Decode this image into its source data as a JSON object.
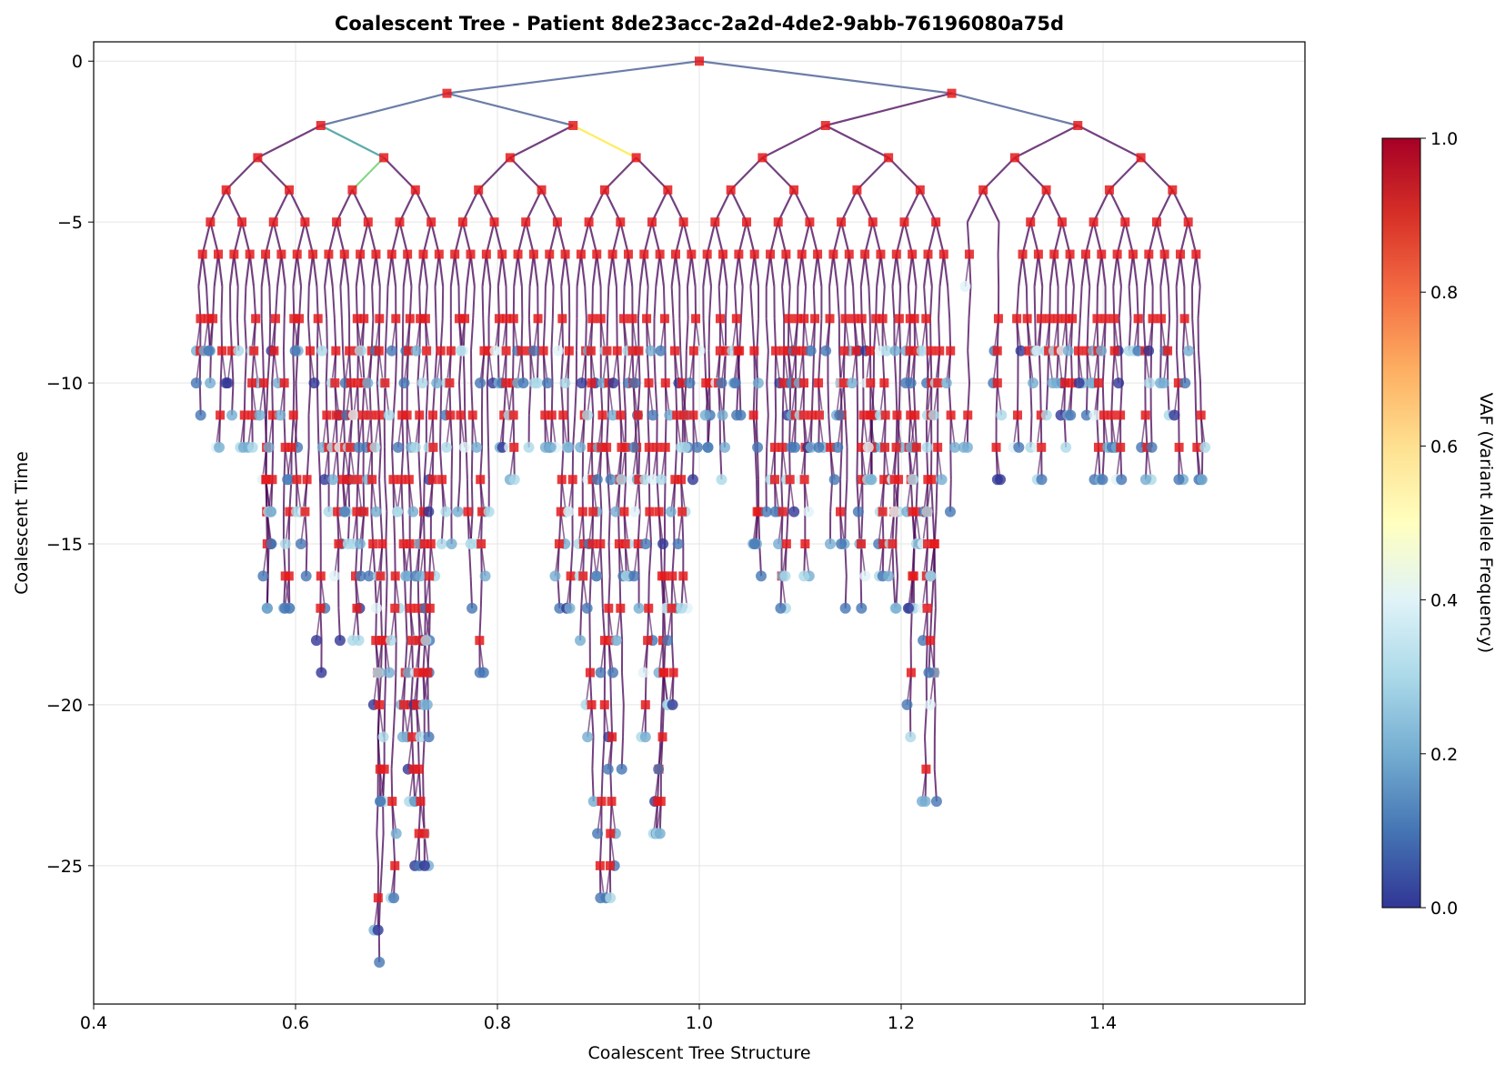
{
  "chart_data": {
    "type": "scatter",
    "subtype": "coalescent-tree",
    "title": "Coalescent Tree - Patient 8de23acc-2a2d-4de2-9abb-76196080a75d",
    "xlabel": "Coalescent Tree Structure",
    "ylabel": "Coalescent Time",
    "xlim": [
      0.4,
      1.6
    ],
    "ylim": [
      -29.3,
      0.6
    ],
    "xticks": [
      0.4,
      0.6,
      0.8,
      1.0,
      1.2,
      1.4
    ],
    "xtick_labels": [
      "0.4",
      "0.6",
      "0.8",
      "1.0",
      "1.2",
      "1.4"
    ],
    "yticks": [
      0,
      -5,
      -10,
      -15,
      -20,
      -25
    ],
    "ytick_labels": [
      "0",
      "−5",
      "−10",
      "−15",
      "−20",
      "−25"
    ],
    "grid": true,
    "colorbar": {
      "label": "VAF (Variant Allele Frequency)",
      "min": 0.0,
      "max": 1.0,
      "ticks": [
        0.0,
        0.2,
        0.4,
        0.6,
        0.8,
        1.0
      ],
      "tick_labels": [
        "0.0",
        "0.2",
        "0.4",
        "0.6",
        "0.8",
        "1.0"
      ],
      "colormap": "RdYlBu_r"
    },
    "marker_legend": {
      "internal_nodes": "square, red",
      "leaf_nodes": "circle, colored by VAF"
    },
    "edge_colormap": "viridis",
    "tree": {
      "root": [
        1.0,
        0
      ],
      "level_1": [
        [
          0.75,
          -1
        ],
        [
          1.25,
          -1
        ]
      ],
      "level_2": [
        [
          0.625,
          -2
        ],
        [
          0.875,
          -2
        ],
        [
          1.125,
          -2
        ],
        [
          1.375,
          -2
        ]
      ],
      "level_3": [
        [
          0.5625,
          -3
        ],
        [
          0.6875,
          -3
        ],
        [
          0.8125,
          -3
        ],
        [
          0.9375,
          -3
        ],
        [
          1.0625,
          -3
        ],
        [
          1.1875,
          -3
        ],
        [
          1.3125,
          -3
        ],
        [
          1.4375,
          -3
        ]
      ],
      "max_depth_region_leaves": [
        {
          "x": 0.69,
          "depth": 29
        },
        {
          "x": 0.905,
          "depth": 27
        },
        {
          "x": 1.225,
          "depth": 24
        },
        {
          "x": 0.725,
          "depth": 26
        },
        {
          "x": 0.96,
          "depth": 25
        }
      ],
      "leaf_x_range": [
        0.5,
        1.5
      ],
      "leaf_depth_range": [
        6,
        29
      ]
    }
  },
  "colors": {
    "internal_node": "#e41a1c",
    "edge_default": "#440154",
    "grid": "#e5e5e5"
  }
}
